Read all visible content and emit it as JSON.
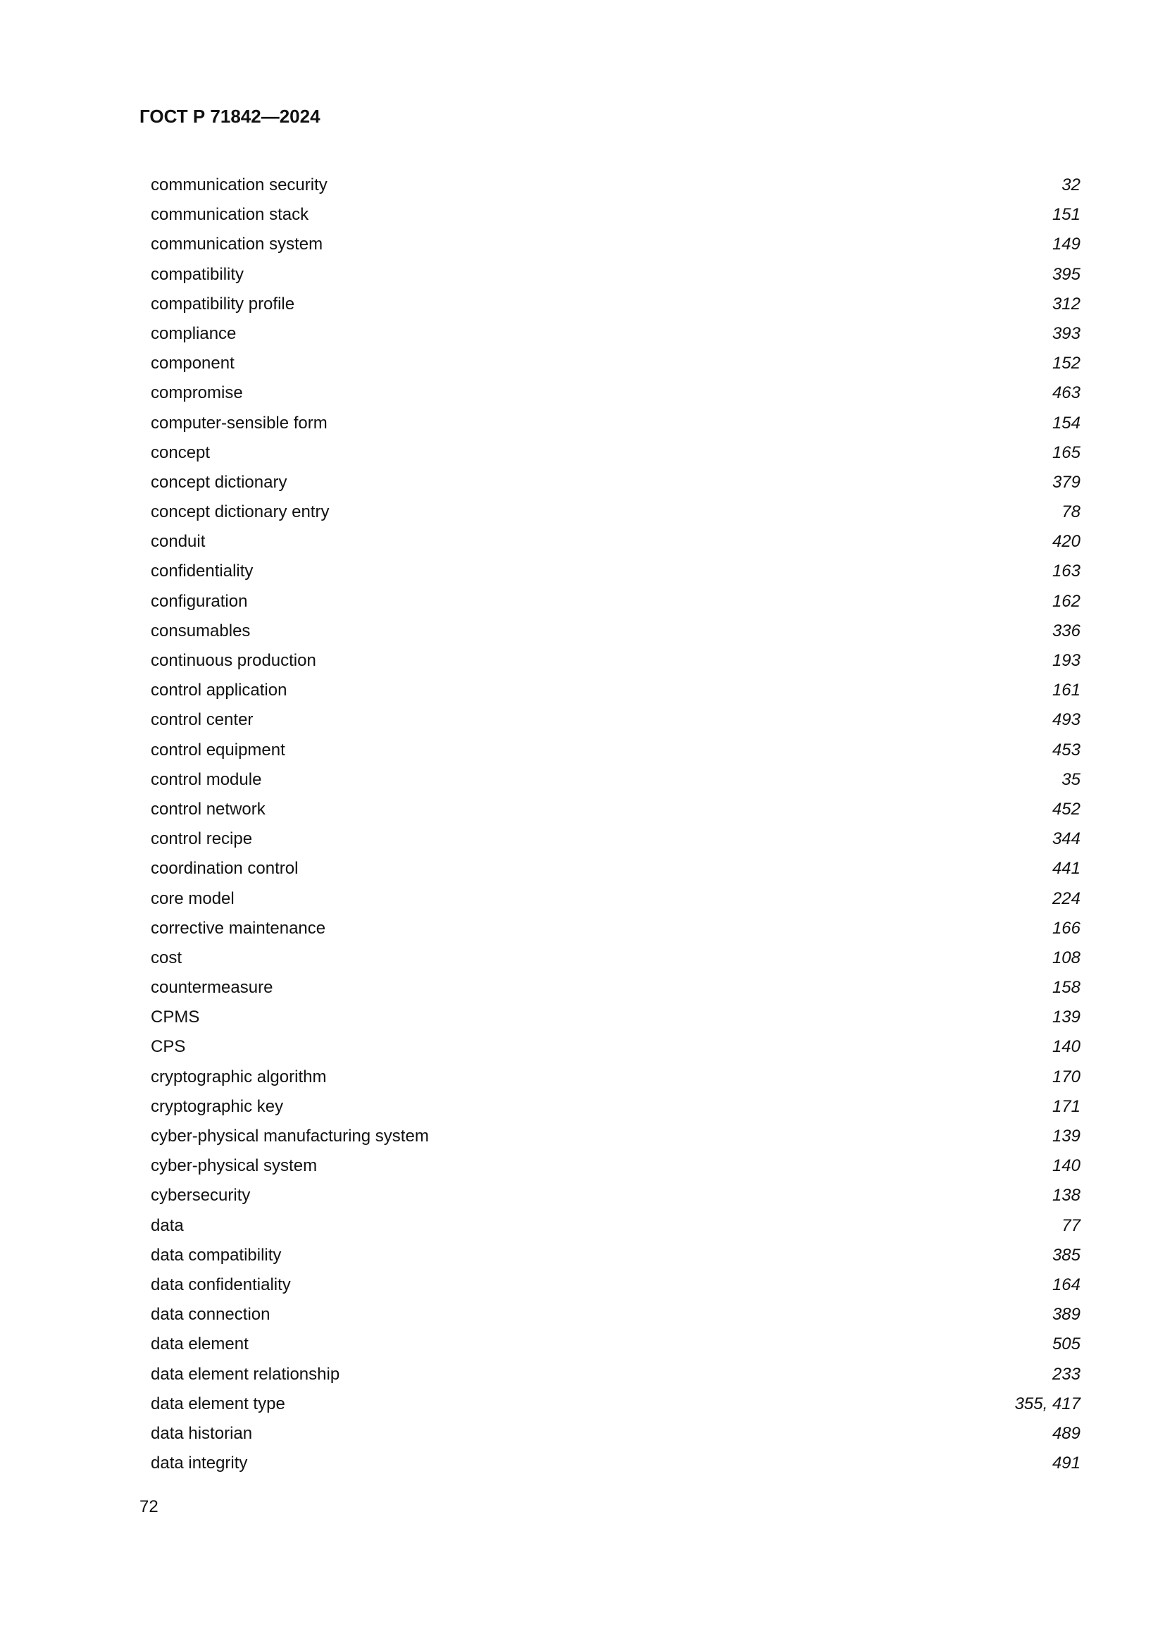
{
  "header": {
    "title": "ГОСТ Р 71842—2024"
  },
  "entries": [
    {
      "term": "communication security",
      "pages": "32"
    },
    {
      "term": "communication stack",
      "pages": "151"
    },
    {
      "term": "communication system",
      "pages": "149"
    },
    {
      "term": "compatibility",
      "pages": "395"
    },
    {
      "term": "compatibility profile",
      "pages": "312"
    },
    {
      "term": "compliance",
      "pages": "393"
    },
    {
      "term": "component",
      "pages": "152"
    },
    {
      "term": "compromise",
      "pages": "463"
    },
    {
      "term": "computer-sensible form",
      "pages": "154"
    },
    {
      "term": "concept",
      "pages": "165"
    },
    {
      "term": "concept dictionary",
      "pages": "379"
    },
    {
      "term": "concept dictionary entry",
      "pages": "78"
    },
    {
      "term": "conduit",
      "pages": "420"
    },
    {
      "term": "confidentiality",
      "pages": "163"
    },
    {
      "term": "configuration",
      "pages": "162"
    },
    {
      "term": "consumables",
      "pages": "336"
    },
    {
      "term": "continuous production",
      "pages": "193"
    },
    {
      "term": "control application",
      "pages": "161"
    },
    {
      "term": "control center",
      "pages": "493"
    },
    {
      "term": "control equipment",
      "pages": "453"
    },
    {
      "term": "control module",
      "pages": "35"
    },
    {
      "term": "control network",
      "pages": "452"
    },
    {
      "term": "control recipe",
      "pages": "344"
    },
    {
      "term": "coordination control",
      "pages": "441"
    },
    {
      "term": "core model",
      "pages": "224"
    },
    {
      "term": "corrective maintenance",
      "pages": "166"
    },
    {
      "term": "cost",
      "pages": "108"
    },
    {
      "term": "countermeasure",
      "pages": "158"
    },
    {
      "term": "CPMS",
      "pages": "139"
    },
    {
      "term": "CPS",
      "pages": "140"
    },
    {
      "term": "cryptographic algorithm",
      "pages": "170"
    },
    {
      "term": "cryptographic key",
      "pages": "171"
    },
    {
      "term": "cyber-physical manufacturing system",
      "pages": "139"
    },
    {
      "term": "cyber-physical system",
      "pages": "140"
    },
    {
      "term": "cybersecurity",
      "pages": "138"
    },
    {
      "term": "data",
      "pages": "77"
    },
    {
      "term": "data compatibility",
      "pages": "385"
    },
    {
      "term": "data confidentiality",
      "pages": "164"
    },
    {
      "term": "data connection",
      "pages": "389"
    },
    {
      "term": "data element",
      "pages": "505"
    },
    {
      "term": "data element relationship",
      "pages": "233"
    },
    {
      "term": "data element type",
      "pages": "355, 417"
    },
    {
      "term": "data historian",
      "pages": "489"
    },
    {
      "term": "data integrity",
      "pages": "491"
    }
  ],
  "footer": {
    "page_number": "72"
  }
}
